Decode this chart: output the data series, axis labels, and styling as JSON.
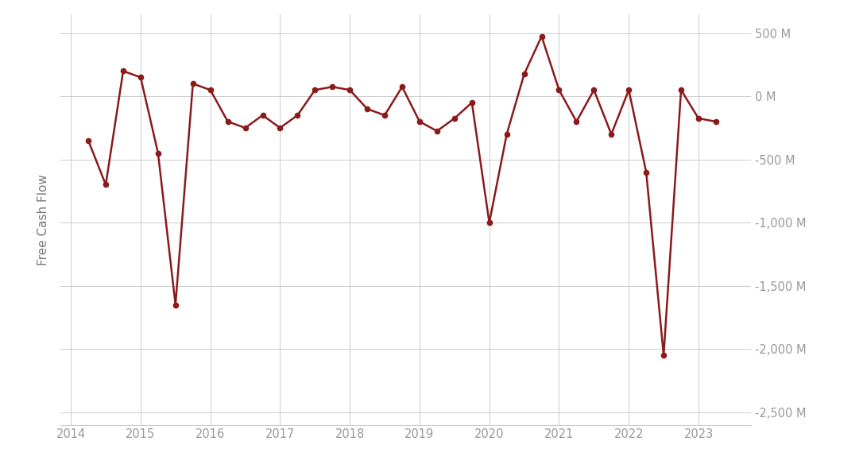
{
  "x": [
    2014.25,
    2014.5,
    2014.75,
    2015.0,
    2015.25,
    2015.5,
    2015.75,
    2016.0,
    2016.25,
    2016.5,
    2016.75,
    2017.0,
    2017.25,
    2017.5,
    2017.75,
    2018.0,
    2018.25,
    2018.5,
    2018.75,
    2019.0,
    2019.25,
    2019.5,
    2019.75,
    2020.0,
    2020.25,
    2020.5,
    2020.75,
    2021.0,
    2021.25,
    2021.5,
    2021.75,
    2022.0,
    2022.25,
    2022.5,
    2022.75,
    2023.0,
    2023.25
  ],
  "y": [
    -350,
    -700,
    200,
    150,
    -450,
    -1650,
    100,
    50,
    -200,
    -250,
    -150,
    -250,
    -150,
    50,
    75,
    50,
    -100,
    -150,
    75,
    -200,
    -275,
    -175,
    -50,
    -1000,
    -300,
    175,
    475,
    50,
    -200,
    50,
    -300,
    50,
    -600,
    -2050,
    50,
    -175,
    -200
  ],
  "line_color": "#8B1A1A",
  "marker_color": "#8B1A1A",
  "ylabel": "Free Cash Flow",
  "ylim": [
    -2600,
    650
  ],
  "xlim": [
    2013.85,
    2023.75
  ],
  "yticks": [
    500,
    0,
    -500,
    -1000,
    -1500,
    -2000,
    -2500
  ],
  "ytick_labels": [
    "500 M",
    "0 M",
    "-500 M",
    "-1,000 M",
    "-1,500 M",
    "-2,000 M",
    "-2,500 M"
  ],
  "xticks": [
    2014,
    2015,
    2016,
    2017,
    2018,
    2019,
    2020,
    2021,
    2022,
    2023
  ],
  "background_color": "#ffffff",
  "grid_color": "#cccccc",
  "tick_label_color": "#999999",
  "axis_label_color": "#777777"
}
